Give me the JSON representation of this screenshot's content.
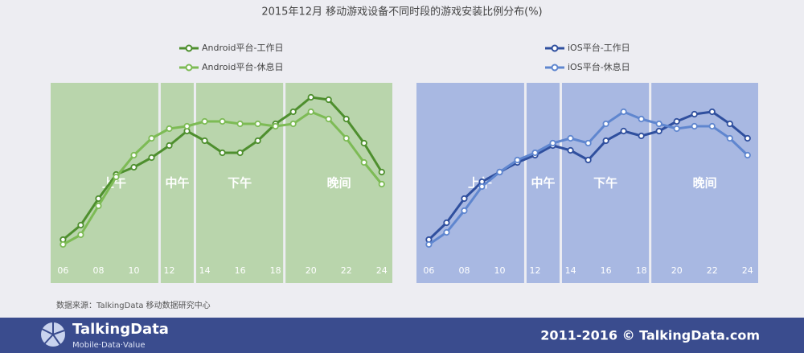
{
  "header": {
    "title": "2015年12月  移动游戏设备不同时段的游戏安装比例分布(%)"
  },
  "source": "数据来源：TalkingData   移动数据研究中心",
  "footer": {
    "brand": "TalkingData",
    "slogan": "Mobile·Data·Value",
    "copyright": "2011-2016 © TalkingData.com"
  },
  "chart_data": [
    {
      "type": "line",
      "background": "#b9d5ac",
      "x": [
        6,
        7,
        8,
        9,
        10,
        11,
        12,
        13,
        14,
        15,
        16,
        17,
        18,
        19,
        20,
        21,
        22,
        23,
        24
      ],
      "xlim": [
        5.3,
        24.6
      ],
      "ylim": [
        0,
        8.3
      ],
      "xticks": [
        {
          "value": 6,
          "label": "06"
        },
        {
          "value": 8,
          "label": "08"
        },
        10,
        12,
        14,
        16,
        18,
        20,
        22,
        24
      ],
      "annotations": [
        "上午",
        "中午",
        "下午",
        "晚间"
      ],
      "series": [
        {
          "name": "Android平台-工作日",
          "color": "#4e8f2e",
          "values": [
            1.8,
            2.4,
            3.5,
            4.5,
            4.8,
            5.2,
            5.7,
            6.3,
            5.9,
            5.4,
            5.4,
            5.9,
            6.6,
            7.1,
            7.7,
            7.6,
            6.8,
            5.8,
            4.6
          ]
        },
        {
          "name": "Android平台-休息日",
          "color": "#7dbb55",
          "values": [
            1.6,
            2.0,
            3.2,
            4.4,
            5.3,
            6.0,
            6.4,
            6.5,
            6.7,
            6.7,
            6.6,
            6.6,
            6.5,
            6.6,
            7.1,
            6.8,
            6.0,
            5.0,
            4.1
          ]
        }
      ]
    },
    {
      "type": "line",
      "background": "#a8b8e2",
      "x": [
        6,
        7,
        8,
        9,
        10,
        11,
        12,
        13,
        14,
        15,
        16,
        17,
        18,
        19,
        20,
        21,
        22,
        23,
        24
      ],
      "xlim": [
        5.3,
        24.6
      ],
      "ylim": [
        0,
        8.3
      ],
      "xticks": [
        {
          "value": 6,
          "label": "06"
        },
        {
          "value": 8,
          "label": "08"
        },
        10,
        12,
        14,
        16,
        18,
        20,
        22,
        24
      ],
      "annotations": [
        "上午",
        "中午",
        "下午",
        "晚间"
      ],
      "series": [
        {
          "name": "iOS平台-工作日",
          "color": "#2f4f9e",
          "values": [
            1.8,
            2.5,
            3.5,
            4.2,
            4.6,
            5.0,
            5.3,
            5.7,
            5.5,
            5.1,
            5.9,
            6.3,
            6.1,
            6.3,
            6.7,
            7.0,
            7.1,
            6.6,
            6.0
          ]
        },
        {
          "name": "iOS平台-休息日",
          "color": "#5f86cf",
          "values": [
            1.6,
            2.1,
            3.0,
            4.0,
            4.6,
            5.1,
            5.4,
            5.8,
            6.0,
            5.8,
            6.6,
            7.1,
            6.8,
            6.6,
            6.4,
            6.5,
            6.5,
            6.0,
            5.3
          ]
        }
      ]
    }
  ]
}
